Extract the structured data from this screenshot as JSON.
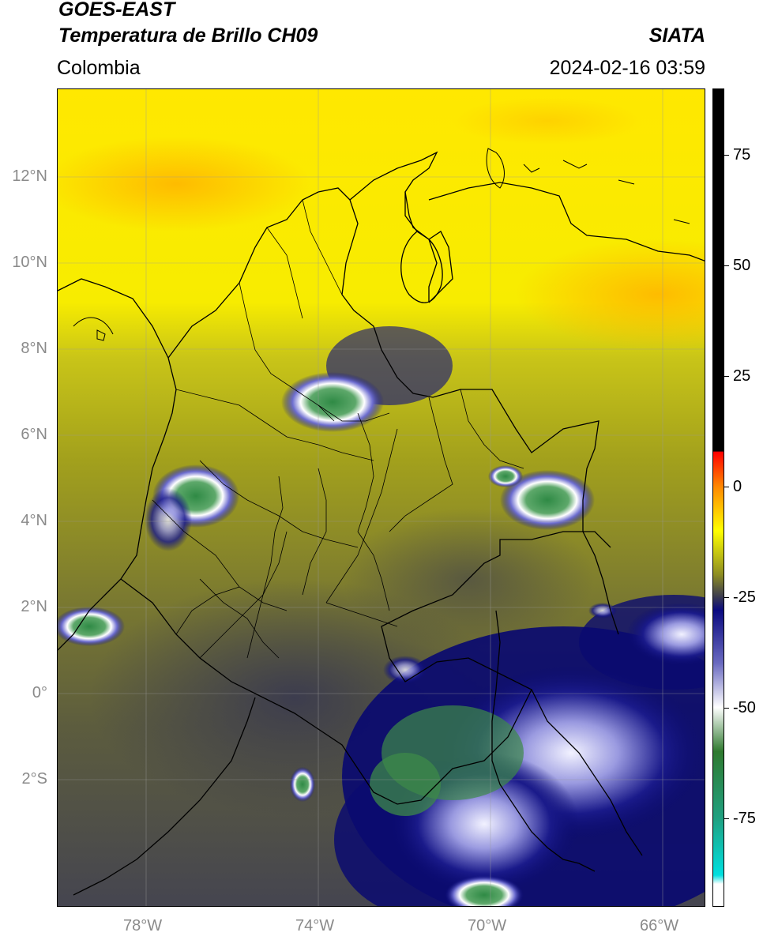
{
  "header": {
    "satellite": "GOES-EAST",
    "product": "Temperatura de Brillo CH09",
    "source": "SIATA",
    "region": "Colombia",
    "datetime": "2024-02-16 03:59"
  },
  "map": {
    "lon_range": [
      -80,
      -65
    ],
    "lat_range": [
      -5,
      14
    ],
    "lat_ticks": [
      {
        "value": 12,
        "label": "12°N"
      },
      {
        "value": 10,
        "label": "10°N"
      },
      {
        "value": 8,
        "label": "8°N"
      },
      {
        "value": 6,
        "label": "6°N"
      },
      {
        "value": 4,
        "label": "4°N"
      },
      {
        "value": 2,
        "label": "2°N"
      },
      {
        "value": 0,
        "label": "0°"
      },
      {
        "value": -2,
        "label": "2°S"
      }
    ],
    "lon_ticks": [
      {
        "value": -78,
        "label": "78°W"
      },
      {
        "value": -74,
        "label": "74°W"
      },
      {
        "value": -70,
        "label": "70°W"
      },
      {
        "value": -66,
        "label": "66°W"
      }
    ],
    "gridlines": true
  },
  "colorbar": {
    "range": [
      -95,
      90
    ],
    "ticks": [
      {
        "value": 75,
        "label": "75"
      },
      {
        "value": 50,
        "label": "50"
      },
      {
        "value": 25,
        "label": "25"
      },
      {
        "value": 0,
        "label": "0"
      },
      {
        "value": -25,
        "label": "-25"
      },
      {
        "value": -50,
        "label": "-50"
      },
      {
        "value": -75,
        "label": "-75"
      }
    ],
    "stops": [
      {
        "value": 90,
        "color": "#000000"
      },
      {
        "value": 8,
        "color": "#000000"
      },
      {
        "value": 7.9,
        "color": "#ff0000"
      },
      {
        "value": 0,
        "color": "#ff8800"
      },
      {
        "value": -10,
        "color": "#ffff00"
      },
      {
        "value": -20,
        "color": "#8c8c22"
      },
      {
        "value": -25,
        "color": "#3a3a50"
      },
      {
        "value": -28,
        "color": "#0a0a80"
      },
      {
        "value": -40,
        "color": "#6a6ac0"
      },
      {
        "value": -50,
        "color": "#ffffff"
      },
      {
        "value": -60,
        "color": "#2f7a2f"
      },
      {
        "value": -75,
        "color": "#20a080"
      },
      {
        "value": -88,
        "color": "#00e0e0"
      },
      {
        "value": -90,
        "color": "#ffffff"
      },
      {
        "value": -95,
        "color": "#ffffff"
      }
    ]
  }
}
